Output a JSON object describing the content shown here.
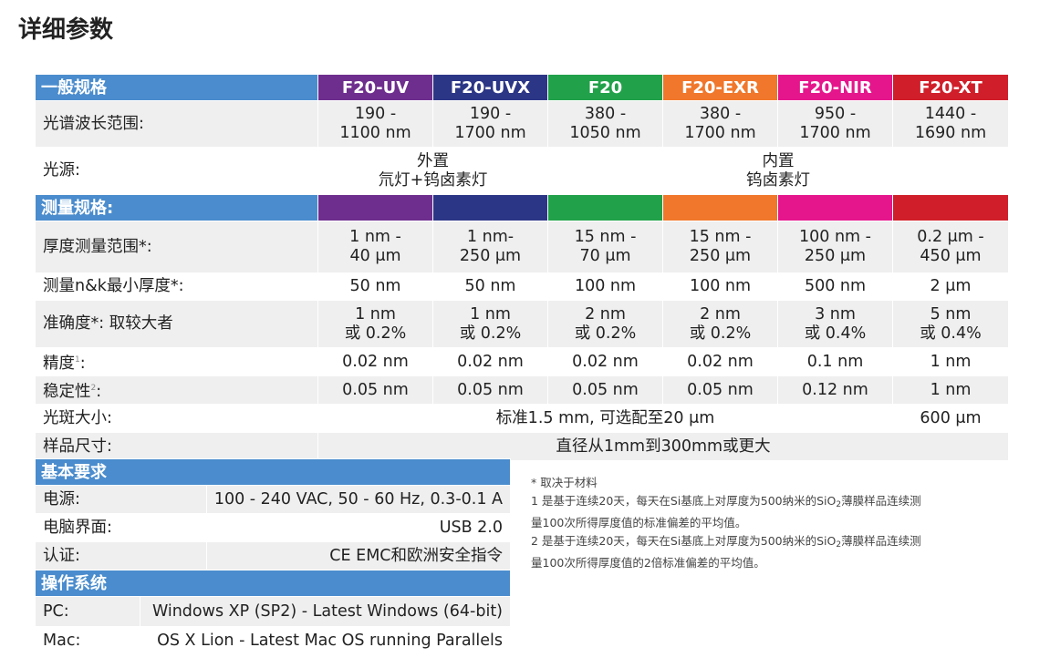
{
  "page_title": "详细参数",
  "colors": {
    "section_blue": "#4a8ccd",
    "F20-UV": "#6e2e8d",
    "F20-UVX": "#2c3686",
    "F20": "#21a14a",
    "F20-EXR": "#f0772b",
    "F20-NIR": "#e5168c",
    "F20-XT": "#d01f2a"
  },
  "spec": {
    "general_section": "一般规格",
    "models": [
      "F20-UV",
      "F20-UVX",
      "F20",
      "F20-EXR",
      "F20-NIR",
      "F20-XT"
    ],
    "wavelength": {
      "label": "光谱波长范围:",
      "values": [
        [
          "190 -",
          "1100 nm"
        ],
        [
          "190 -",
          "1700 nm"
        ],
        [
          "380 -",
          "1050 nm"
        ],
        [
          "380 -",
          "1700 nm"
        ],
        [
          "950 -",
          "1700 nm"
        ],
        [
          "1440 -",
          "1690 nm"
        ]
      ]
    },
    "light_source": {
      "label": "光源:",
      "external": [
        "外置",
        "氘灯+钨卤素灯"
      ],
      "internal": [
        "内置",
        "钨卤素灯"
      ]
    },
    "measurement_section": "测量规格:",
    "thickness": {
      "label": "厚度测量范围*:",
      "values": [
        [
          "1 nm -",
          "40 μm"
        ],
        [
          "1 nm-",
          "250 μm"
        ],
        [
          "15 nm -",
          "70 μm"
        ],
        [
          "15 nm -",
          "250 μm"
        ],
        [
          "100 nm -",
          "250 μm"
        ],
        [
          "0.2 μm -",
          "450 μm"
        ]
      ]
    },
    "min_nk": {
      "label": "测量n&k最小厚度*:",
      "values": [
        "50 nm",
        "50 nm",
        "100 nm",
        "100 nm",
        "500 nm",
        "2 μm"
      ]
    },
    "accuracy": {
      "label": "准确度*: 取较大者",
      "values": [
        [
          "1 nm",
          "或 0.2%"
        ],
        [
          "1 nm",
          "或 0.2%"
        ],
        [
          "2 nm",
          "或 0.2%"
        ],
        [
          "2 nm",
          "或 0.2%"
        ],
        [
          "3 nm",
          "或 0.4%"
        ],
        [
          "5 nm",
          "或 0.4%"
        ]
      ]
    },
    "precision": {
      "label": "精度",
      "mark": "1",
      "colon": ":",
      "values": [
        "0.02 nm",
        "0.02 nm",
        "0.02 nm",
        "0.02 nm",
        "0.1 nm",
        "1 nm"
      ]
    },
    "stability": {
      "label": "稳定性",
      "mark": "2",
      "colon": ":",
      "values": [
        "0.05 nm",
        "0.05 nm",
        "0.05 nm",
        "0.05 nm",
        "0.12 nm",
        "1 nm"
      ]
    },
    "spot": {
      "label": "光斑大小:",
      "standard": "标准1.5 mm, 可选配至20 μm",
      "xt": "600 μm"
    },
    "sample": {
      "label": "样品尺寸:",
      "value": "直径从1mm到300mm或更大"
    }
  },
  "requirements": {
    "section": "基本要求",
    "rows": [
      {
        "label": "电源:",
        "value": "100 - 240 VAC, 50 - 60 Hz, 0.3-0.1 A"
      },
      {
        "label": "电脑界面:",
        "value": "USB 2.0"
      },
      {
        "label": "认证:",
        "value": "CE EMC和欧洲安全指令"
      }
    ]
  },
  "os": {
    "section": "操作系统",
    "rows": [
      {
        "label": "PC:",
        "value": "Windows XP (SP2) - Latest Windows (64-bit)"
      },
      {
        "label": "Mac:",
        "value": "OS X Lion - Latest Mac OS running Parallels"
      }
    ]
  },
  "notes": {
    "n0": "*  取决于材料",
    "n1a": "1 是基于连续20天，每天在Si基底上对厚度为500纳米的SiO",
    "n1b": "薄膜样品连续测",
    "n1c": "量100次所得厚度值的标准偏差的平均值。",
    "n2a": "2  是基于连续20天，每天在Si基底上对厚度为500纳米的SiO",
    "n2b": "薄膜样品连续测",
    "n2c": "量100次所得厚度值的2倍标准偏差的平均值。",
    "subscript": "2"
  }
}
